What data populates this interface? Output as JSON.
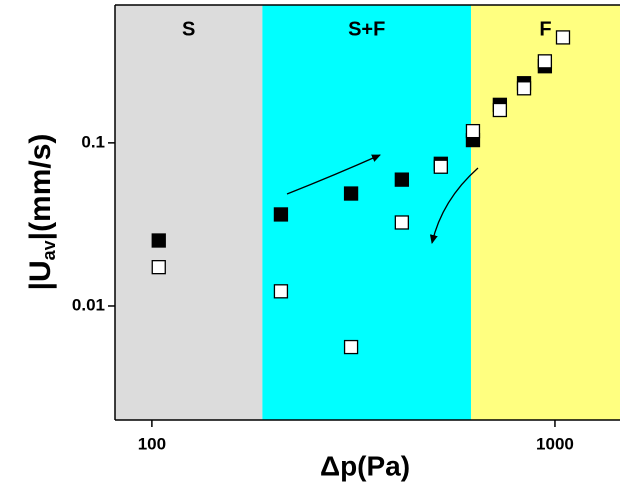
{
  "chart_data": {
    "type": "scatter",
    "xlabel": "Δp(Pa)",
    "ylabel": {
      "main": "|U",
      "sub": "av",
      "rest": "|(mm/s)"
    },
    "xscale": "log",
    "yscale": "log",
    "xlim": [
      81,
      1450
    ],
    "ylim": [
      0.002,
      0.7
    ],
    "xticks": [
      100,
      1000
    ],
    "yticks": [
      0.01,
      0.1
    ],
    "region_bounds": [
      188,
      619
    ],
    "regions": [
      {
        "label": "S",
        "color": "#dcdcdc"
      },
      {
        "label": "S+F",
        "color": "#00ffff"
      },
      {
        "label": "F",
        "color": "#ffff80"
      }
    ],
    "series": [
      {
        "color": "#000000",
        "fill": "#000000",
        "x": [
          104,
          209,
          312,
          417,
          521,
          626,
          730,
          838,
          944
        ],
        "values": [
          0.0252,
          0.0364,
          0.0489,
          0.0595,
          0.0744,
          0.104,
          0.171,
          0.232,
          0.295
        ]
      },
      {
        "color": "#000000",
        "fill": "#ffffff",
        "x": [
          104,
          209,
          312,
          417,
          521,
          626,
          730,
          838,
          944,
          1047
        ],
        "values": [
          0.0173,
          0.0123,
          0.0056,
          0.0325,
          0.0714,
          0.118,
          0.159,
          0.216,
          0.316,
          0.443
        ]
      }
    ]
  }
}
